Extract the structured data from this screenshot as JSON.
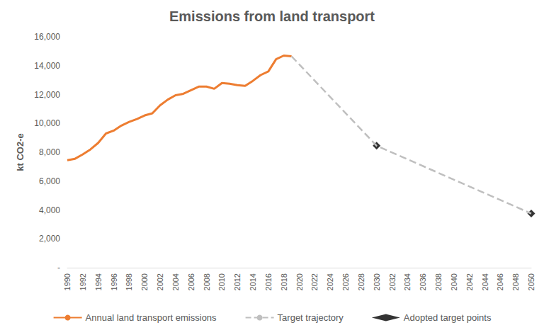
{
  "chart_data": {
    "type": "line",
    "title": "Emissions from land transport",
    "y_label": "kt CO2-e",
    "xlim": [
      1990,
      2050
    ],
    "xticks": [
      1990,
      1992,
      1994,
      1996,
      1998,
      2000,
      2002,
      2004,
      2006,
      2008,
      2010,
      2012,
      2014,
      2016,
      2018,
      2020,
      2022,
      2024,
      2026,
      2028,
      2030,
      2032,
      2034,
      2036,
      2038,
      2040,
      2042,
      2044,
      2046,
      2048,
      2050
    ],
    "ylim": [
      0,
      16000
    ],
    "yticks": [
      {
        "value": 0,
        "label": "-"
      },
      {
        "value": 2000,
        "label": "2,000"
      },
      {
        "value": 4000,
        "label": "4,000"
      },
      {
        "value": 6000,
        "label": "6,000"
      },
      {
        "value": 8000,
        "label": "8,000"
      },
      {
        "value": 10000,
        "label": "10,000"
      },
      {
        "value": 12000,
        "label": "12,000"
      },
      {
        "value": 14000,
        "label": "14,000"
      },
      {
        "value": 16000,
        "label": "16,000"
      }
    ],
    "grid": false,
    "legend": "bottom",
    "series": [
      {
        "name": "Annual land transport emissions",
        "type": "line",
        "color": "#ed7d31",
        "marker": "none",
        "line_style": "solid",
        "x": [
          1990,
          1991,
          1992,
          1993,
          1994,
          1995,
          1996,
          1997,
          1998,
          1999,
          2000,
          2001,
          2002,
          2003,
          2004,
          2005,
          2006,
          2007,
          2008,
          2009,
          2010,
          2011,
          2012,
          2013,
          2014,
          2015,
          2016,
          2017,
          2018,
          2019
        ],
        "values": [
          7450,
          7550,
          7850,
          8200,
          8650,
          9300,
          9500,
          9850,
          10100,
          10300,
          10550,
          10700,
          11250,
          11650,
          11950,
          12050,
          12300,
          12550,
          12550,
          12400,
          12800,
          12750,
          12650,
          12600,
          12950,
          13350,
          13600,
          14450,
          14700,
          14650
        ]
      },
      {
        "name": "Target trajectory",
        "type": "line",
        "color": "#bfbfbf",
        "marker": "none",
        "line_style": "dashed",
        "x": [
          2019,
          2030,
          2050
        ],
        "values": [
          14650,
          8450,
          3750
        ]
      },
      {
        "name": "Adopted target points",
        "type": "scatter",
        "color": "#000000",
        "marker": "diamond",
        "x": [
          2030,
          2050
        ],
        "values": [
          8450,
          3750
        ]
      }
    ]
  }
}
